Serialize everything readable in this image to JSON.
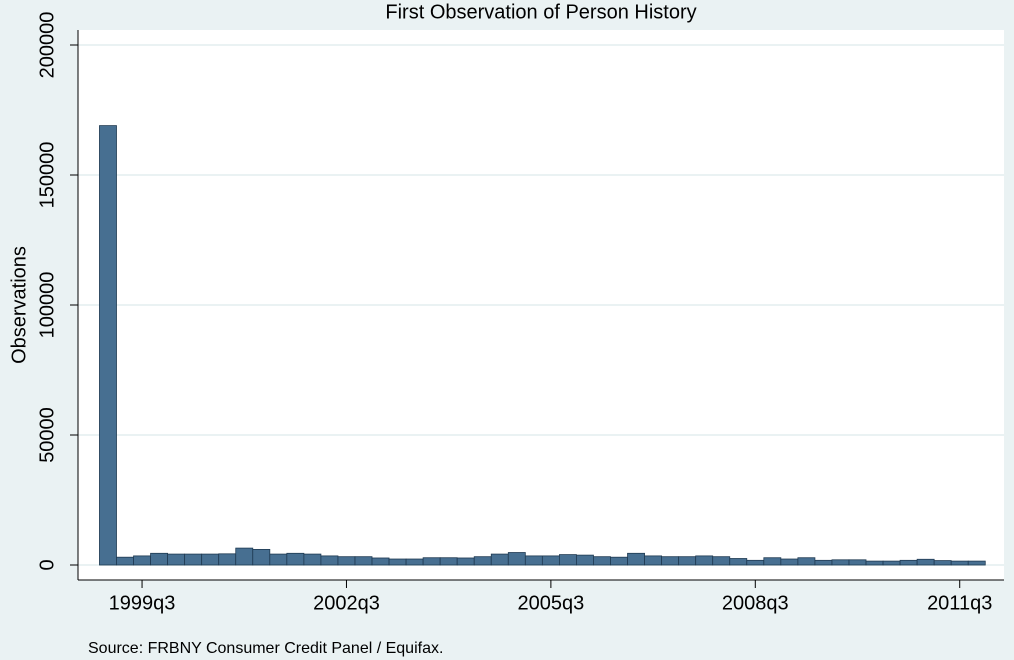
{
  "chart_data": {
    "type": "histogram",
    "title": "First Observation of Person History",
    "y_label": "Observations",
    "note": "Source: FRBNY Consumer Credit Panel / Equifax.",
    "bins": [
      155.5,
      156.5,
      157.5,
      158.5,
      159.5,
      160.5,
      161.5,
      162.5,
      163.5,
      164.5,
      165.5,
      166.5,
      167.5,
      168.5,
      169.5,
      170.5,
      171.5,
      172.5,
      173.5,
      174.5,
      175.5,
      176.5,
      177.5,
      178.5,
      179.5,
      180.5,
      181.5,
      182.5,
      183.5,
      184.5,
      185.5,
      186.5,
      187.5,
      188.5,
      189.5,
      190.5,
      191.5,
      192.5,
      193.5,
      194.5,
      195.5,
      196.5,
      197.5,
      198.5,
      199.5,
      200.5,
      201.5,
      202.5,
      203.5,
      204.5,
      205.5,
      206.5,
      207.5
    ],
    "values": [
      169000,
      3000,
      3500,
      4500,
      4200,
      4200,
      4200,
      4300,
      6500,
      6000,
      4200,
      4500,
      4200,
      3500,
      3200,
      3200,
      2700,
      2300,
      2300,
      2800,
      2800,
      2700,
      3200,
      4200,
      4800,
      3500,
      3500,
      4000,
      3800,
      3200,
      3000,
      4500,
      3500,
      3200,
      3200,
      3500,
      3200,
      2500,
      1800,
      2800,
      2300,
      2800,
      1800,
      2000,
      2000,
      1500,
      1500,
      1800,
      2200,
      1700,
      1500,
      1500
    ],
    "color": "#476f91",
    "xlim": [
      154.24,
      208.6
    ],
    "xticks": [
      {
        "value": 158,
        "label": "1999q3"
      },
      {
        "value": 170,
        "label": "2002q3"
      },
      {
        "value": 182,
        "label": "2005q3"
      },
      {
        "value": 194,
        "label": "2008q3"
      },
      {
        "value": 206,
        "label": "2011q3"
      }
    ],
    "ylim": [
      -5770,
      205770
    ],
    "yticks": [
      0,
      50000,
      100000,
      150000,
      200000
    ],
    "grid": true
  }
}
